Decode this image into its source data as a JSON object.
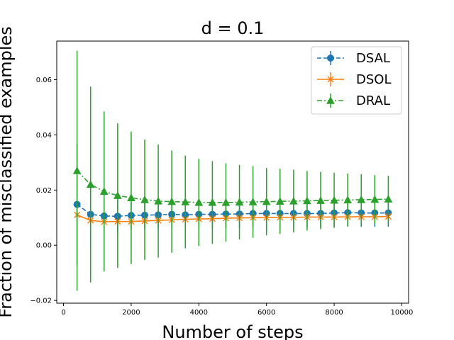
{
  "chart_data": {
    "type": "line",
    "title": "d = 0.1",
    "xlabel": "Number of steps",
    "ylabel": "Fraction of misclassified examples",
    "xlim": [
      -200,
      10200
    ],
    "ylim": [
      -0.021,
      0.074
    ],
    "xticks": [
      0,
      2000,
      4000,
      6000,
      8000,
      10000
    ],
    "xtick_labels": [
      "0",
      "2000",
      "4000",
      "6000",
      "8000",
      "10000"
    ],
    "yticks": [
      -0.02,
      0.0,
      0.02,
      0.04,
      0.06
    ],
    "ytick_labels": [
      "−0.02",
      "0.00",
      "0.02",
      "0.04",
      "0.06"
    ],
    "grid": false,
    "legend_position": "top-right",
    "x": [
      400,
      800,
      1200,
      1600,
      2000,
      2400,
      2800,
      3200,
      3600,
      4000,
      4400,
      4800,
      5200,
      5600,
      6000,
      6400,
      6800,
      7200,
      7600,
      8000,
      8400,
      8800,
      9200,
      9600
    ],
    "series": [
      {
        "name": "DSAL",
        "color": "#1f77b4",
        "marker": "circle",
        "linestyle": "dashed",
        "values": [
          0.0148,
          0.0112,
          0.0106,
          0.0105,
          0.0108,
          0.0109,
          0.011,
          0.0112,
          0.011,
          0.0112,
          0.0112,
          0.0113,
          0.0113,
          0.0115,
          0.0115,
          0.0115,
          0.0115,
          0.0115,
          0.0115,
          0.0117,
          0.0118,
          0.0117,
          0.0117,
          0.0117
        ],
        "errors": [
          0.022,
          0.012,
          0.008,
          0.006,
          0.005,
          0.005,
          0.005,
          0.005,
          0.005,
          0.005,
          0.005,
          0.005,
          0.005,
          0.005,
          0.005,
          0.005,
          0.005,
          0.005,
          0.005,
          0.005,
          0.005,
          0.005,
          0.005,
          0.005
        ]
      },
      {
        "name": "DSOL",
        "color": "#ff7f0e",
        "marker": "x",
        "linestyle": "solid",
        "values": [
          0.011,
          0.009,
          0.0085,
          0.0086,
          0.0086,
          0.0088,
          0.009,
          0.0092,
          0.0094,
          0.0095,
          0.0096,
          0.0098,
          0.0099,
          0.01,
          0.01,
          0.0101,
          0.0101,
          0.0102,
          0.0102,
          0.0102,
          0.0103,
          0.0103,
          0.0103,
          0.0104
        ],
        "errors": [
          0.003,
          0.002,
          0.0015,
          0.0015,
          0.0015,
          0.0015,
          0.0015,
          0.0015,
          0.0015,
          0.0015,
          0.0015,
          0.0015,
          0.0015,
          0.0015,
          0.0015,
          0.0015,
          0.0015,
          0.0015,
          0.0015,
          0.0015,
          0.0015,
          0.0015,
          0.0015,
          0.0015
        ]
      },
      {
        "name": "DRAL",
        "color": "#2ca02c",
        "marker": "triangle",
        "linestyle": "dashdot",
        "values": [
          0.027,
          0.022,
          0.0195,
          0.018,
          0.0172,
          0.0165,
          0.016,
          0.0158,
          0.0157,
          0.0155,
          0.0155,
          0.0155,
          0.0156,
          0.0157,
          0.0158,
          0.0159,
          0.016,
          0.0161,
          0.0162,
          0.0163,
          0.0164,
          0.0165,
          0.0166,
          0.0167
        ],
        "errors": [
          0.0435,
          0.0355,
          0.029,
          0.0262,
          0.024,
          0.0218,
          0.0205,
          0.0185,
          0.0168,
          0.0158,
          0.015,
          0.0142,
          0.0135,
          0.013,
          0.0122,
          0.0118,
          0.0114,
          0.0108,
          0.0104,
          0.01,
          0.0096,
          0.0092,
          0.0088,
          0.0085
        ]
      }
    ]
  }
}
